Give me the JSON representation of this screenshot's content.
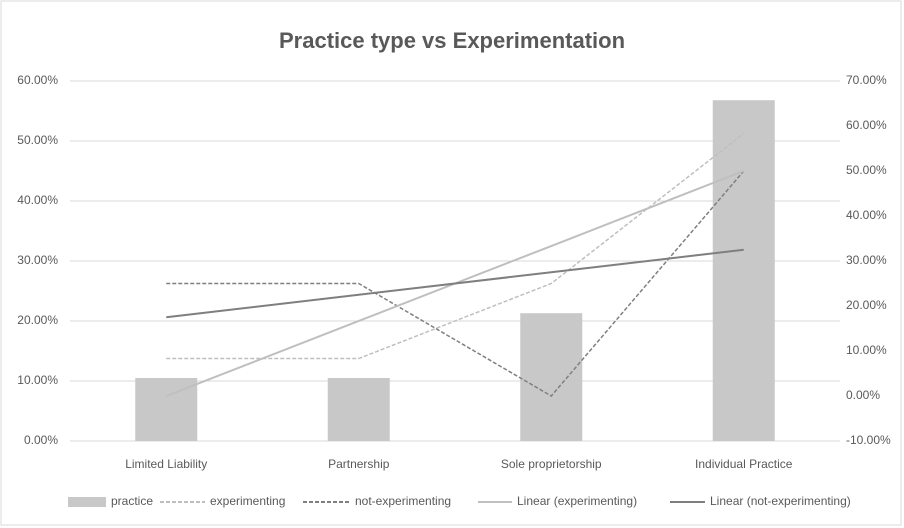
{
  "chart_data": {
    "type": "combo",
    "title": "Practice type vs Experimentation",
    "categories": [
      "Limited Liability",
      "Partnership",
      "Sole proprietorship",
      "Individual Practice"
    ],
    "series": [
      {
        "name": "practice",
        "type": "bar",
        "color": "#c8c8c8",
        "axis": "y",
        "values": [
          10.5,
          10.5,
          21.3,
          56.8
        ]
      },
      {
        "name": "experimenting",
        "type": "line",
        "dashed": true,
        "color": "#bfbfbf",
        "axis": "y2",
        "values": [
          8.33,
          8.33,
          25,
          58.33
        ]
      },
      {
        "name": "not-experimenting",
        "type": "line",
        "dashed": true,
        "color": "#7f7f7f",
        "axis": "y2",
        "values": [
          25,
          25,
          0,
          50
        ]
      },
      {
        "name": "Linear (experimenting)",
        "type": "line",
        "dashed": false,
        "color": "#bfbfbf",
        "axis": "y2",
        "values": [
          0,
          16.67,
          33.33,
          50
        ]
      },
      {
        "name": "Linear (not-experimenting)",
        "type": "line",
        "dashed": false,
        "color": "#7f7f7f",
        "axis": "y2",
        "values": [
          17.5,
          22.5,
          27.5,
          32.5
        ]
      }
    ],
    "ylim": [
      0,
      60
    ],
    "yticks": [
      {
        "value": 0,
        "label": "0.00%"
      },
      {
        "value": 10,
        "label": "10.00%"
      },
      {
        "value": 20,
        "label": "20.00%"
      },
      {
        "value": 30,
        "label": "30.00%"
      },
      {
        "value": 40,
        "label": "40.00%"
      },
      {
        "value": 50,
        "label": "50.00%"
      },
      {
        "value": 60,
        "label": "60.00%"
      }
    ],
    "y2lim": [
      -10,
      70
    ],
    "y2ticks": [
      {
        "value": -10,
        "label": "-10.00%"
      },
      {
        "value": 0,
        "label": "0.00%"
      },
      {
        "value": 10,
        "label": "10.00%"
      },
      {
        "value": 20,
        "label": "20.00%"
      },
      {
        "value": 30,
        "label": "30.00%"
      },
      {
        "value": 40,
        "label": "40.00%"
      },
      {
        "value": 50,
        "label": "50.00%"
      },
      {
        "value": 60,
        "label": "60.00%"
      },
      {
        "value": 70,
        "label": "70.00%"
      }
    ],
    "grid": true,
    "legend": "bottom"
  }
}
